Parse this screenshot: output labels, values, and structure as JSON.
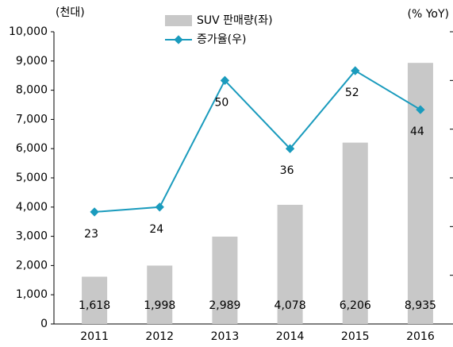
{
  "chart_data": {
    "type": "bar_line",
    "ylabel": "(천대)",
    "y2label": "(% YoY)",
    "categories": [
      "2011",
      "2012",
      "2013",
      "2014",
      "2015",
      "2016"
    ],
    "series": [
      {
        "name": "SUV 판매량(좌)",
        "type": "bar",
        "color": "#c8c8c8",
        "values": [
          1618,
          1998,
          2989,
          4078,
          6206,
          8935
        ],
        "value_labels": [
          "1,618",
          "1,998",
          "2,989",
          "4,078",
          "6,206",
          "8,935"
        ]
      },
      {
        "name": "증가율(우)",
        "type": "line",
        "axis": "y2",
        "color": "#1a9bbd",
        "values": [
          23,
          24,
          50,
          36,
          52,
          44
        ]
      }
    ],
    "ylim": [
      0,
      10000
    ],
    "yticks": [
      0,
      {
        "value": 1000,
        "label": "1,000"
      },
      {
        "value": 2000,
        "label": "2,000"
      },
      {
        "value": 3000,
        "label": "3,000"
      },
      {
        "value": 4000,
        "label": "4,000"
      },
      {
        "value": 5000,
        "label": "5,000"
      },
      {
        "value": 6000,
        "label": "6,000"
      },
      {
        "value": 7000,
        "label": "7,000"
      },
      {
        "value": 8000,
        "label": "8,000"
      },
      {
        "value": 9000,
        "label": "9,000"
      },
      {
        "value": 10000,
        "label": "10,000"
      }
    ],
    "y2lim": [
      0,
      60
    ],
    "y2ticks": [
      0,
      10,
      20,
      30,
      40,
      50,
      60
    ],
    "legend": "top"
  }
}
